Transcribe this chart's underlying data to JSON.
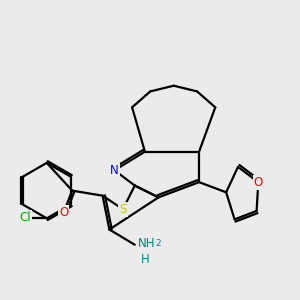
{
  "bg_color": "#ebebeb",
  "bond_color": "#000000",
  "bond_width": 1.6,
  "atom_colors": {
    "N": "#0000ff",
    "S": "#cccc00",
    "O": "#ff0000",
    "Cl": "#00aa00",
    "NH2": "#008888"
  },
  "font_size": 8.5
}
